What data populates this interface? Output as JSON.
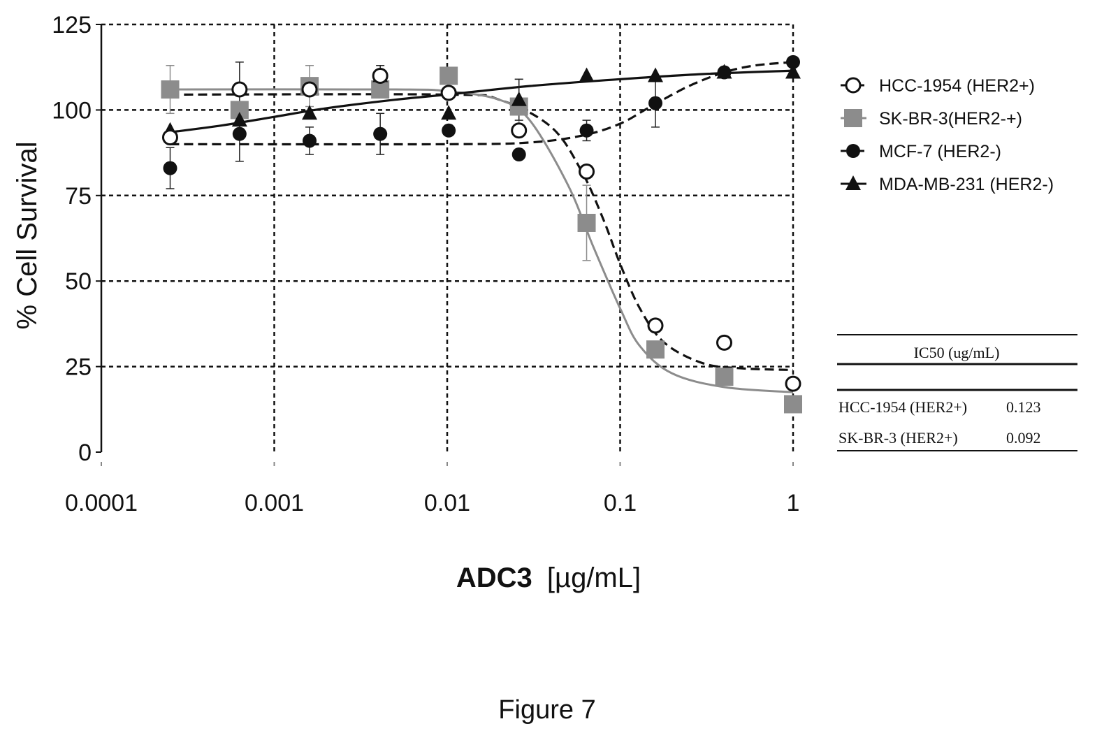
{
  "figure": {
    "caption": "Figure 7"
  },
  "chart_data": {
    "type": "scatter",
    "title": "",
    "xlabel_bold": "ADC3",
    "xlabel_unit": "[µg/mL]",
    "ylabel": "% Cell Survival",
    "x_scale": "log",
    "xlim": [
      0.0001,
      1
    ],
    "ylim": [
      0,
      125
    ],
    "x_ticks": [
      0.0001,
      0.001,
      0.01,
      0.1,
      1
    ],
    "x_tick_labels": [
      "0.0001",
      "0.001",
      "0.01",
      "0.1",
      "1"
    ],
    "y_ticks": [
      0,
      25,
      50,
      75,
      100,
      125
    ],
    "y_tick_labels": [
      "0",
      "25",
      "50",
      "75",
      "100",
      "125"
    ],
    "grid": true,
    "legend_position": "right",
    "series": [
      {
        "name": "HCC-1954 (HER2+)",
        "marker": "open-circle",
        "color": "#111111",
        "curve_style": "dashed",
        "x": [
          0.00025,
          0.00063,
          0.0016,
          0.0041,
          0.0102,
          0.026,
          0.064,
          0.16,
          0.4,
          1.0
        ],
        "y": [
          92,
          106,
          106,
          110,
          105,
          94,
          82,
          37,
          32,
          20
        ],
        "err": [
          0,
          8,
          0,
          3,
          0,
          0,
          0,
          0,
          0,
          0
        ],
        "fit_curve": [
          [
            0.00025,
            104.5
          ],
          [
            0.01,
            104.5
          ],
          [
            0.02,
            103
          ],
          [
            0.04,
            95
          ],
          [
            0.06,
            82
          ],
          [
            0.08,
            68
          ],
          [
            0.1,
            55
          ],
          [
            0.13,
            42
          ],
          [
            0.18,
            32
          ],
          [
            0.3,
            26
          ],
          [
            0.5,
            24.5
          ],
          [
            1.0,
            24
          ]
        ]
      },
      {
        "name": "SK-BR-3(HER2-+)",
        "marker": "square",
        "color": "#8c8c8c",
        "curve_style": "solid",
        "x": [
          0.00025,
          0.00063,
          0.0016,
          0.0041,
          0.0102,
          0.026,
          0.064,
          0.16,
          0.4,
          1.0
        ],
        "y": [
          106,
          100,
          107,
          106,
          110,
          101,
          67,
          30,
          22,
          14
        ],
        "err": [
          7,
          0,
          6,
          0,
          0,
          8,
          11,
          0,
          0,
          0
        ],
        "fit_curve": [
          [
            0.00025,
            106
          ],
          [
            0.005,
            106
          ],
          [
            0.01,
            105.5
          ],
          [
            0.02,
            103
          ],
          [
            0.03,
            97
          ],
          [
            0.05,
            78
          ],
          [
            0.07,
            60
          ],
          [
            0.1,
            42
          ],
          [
            0.13,
            31
          ],
          [
            0.2,
            23
          ],
          [
            0.4,
            19
          ],
          [
            1.0,
            17.5
          ]
        ]
      },
      {
        "name": "MCF-7 (HER2-)",
        "marker": "filled-circle",
        "color": "#111111",
        "curve_style": "dashed",
        "x": [
          0.00025,
          0.00063,
          0.0016,
          0.0041,
          0.0102,
          0.026,
          0.064,
          0.16,
          0.4,
          1.0
        ],
        "y": [
          83,
          93,
          91,
          93,
          94,
          87,
          94,
          102,
          111,
          114
        ],
        "err": [
          6,
          8,
          4,
          6,
          0,
          0,
          3,
          7,
          0,
          0
        ],
        "fit_curve": [
          [
            0.00025,
            90
          ],
          [
            0.01,
            90
          ],
          [
            0.03,
            90.5
          ],
          [
            0.06,
            92.5
          ],
          [
            0.1,
            96
          ],
          [
            0.15,
            101
          ],
          [
            0.25,
            107
          ],
          [
            0.4,
            111
          ],
          [
            0.6,
            113
          ],
          [
            1.0,
            114
          ]
        ]
      },
      {
        "name": "MDA-MB-231 (HER2-)",
        "marker": "triangle",
        "color": "#111111",
        "curve_style": "solid",
        "x": [
          0.00025,
          0.00063,
          0.0016,
          0.0041,
          0.0102,
          0.026,
          0.064,
          0.16,
          0.4,
          1.0
        ],
        "y": [
          94,
          97,
          99,
          110,
          99,
          103,
          110,
          110,
          111,
          111
        ],
        "err": [
          0,
          0,
          0,
          0,
          0,
          6,
          0,
          0,
          0,
          0
        ],
        "fit_curve": [
          [
            0.00025,
            93.5
          ],
          [
            0.0005,
            95.5
          ],
          [
            0.001,
            98
          ],
          [
            0.002,
            100.5
          ],
          [
            0.005,
            103
          ],
          [
            0.01,
            104.5
          ],
          [
            0.03,
            107
          ],
          [
            0.1,
            109
          ],
          [
            0.3,
            110.5
          ],
          [
            1.0,
            111.5
          ]
        ]
      }
    ]
  },
  "ic50_table": {
    "header": "IC50 (ug/mL)",
    "rows": [
      {
        "label": "HCC-1954 (HER2+)",
        "value": "0.123"
      },
      {
        "label": "SK-BR-3 (HER2+)",
        "value": "0.092"
      }
    ]
  }
}
